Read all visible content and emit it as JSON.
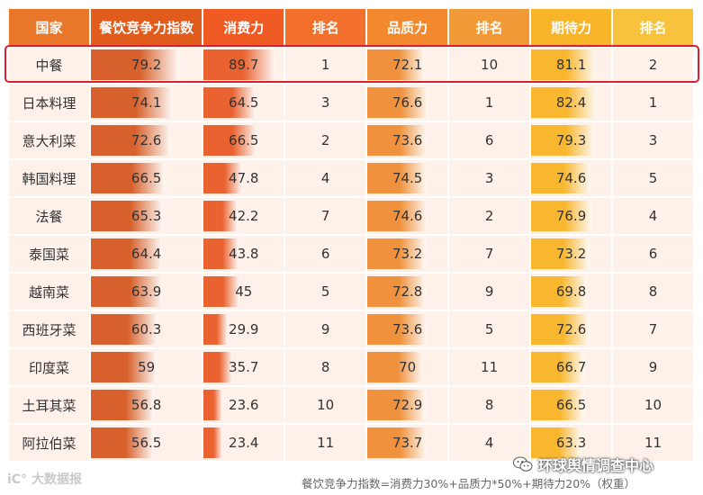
{
  "chart_data": {
    "type": "table",
    "columns": [
      "国家",
      "餐饮竞争力指数",
      "消费力",
      "排名",
      "品质力",
      "排名",
      "期待力",
      "排名"
    ],
    "rows": [
      {
        "country": "中餐",
        "index": 79.2,
        "consumption": 89.7,
        "consumption_rank": 1,
        "quality": 72.1,
        "quality_rank": 10,
        "expectation": 81.1,
        "expectation_rank": 2
      },
      {
        "country": "日本料理",
        "index": 74.1,
        "consumption": 64.5,
        "consumption_rank": 3,
        "quality": 76.6,
        "quality_rank": 1,
        "expectation": 82.4,
        "expectation_rank": 1
      },
      {
        "country": "意大利菜",
        "index": 72.6,
        "consumption": 66.5,
        "consumption_rank": 2,
        "quality": 73.6,
        "quality_rank": 6,
        "expectation": 79.3,
        "expectation_rank": 3
      },
      {
        "country": "韩国料理",
        "index": 66.5,
        "consumption": 47.8,
        "consumption_rank": 4,
        "quality": 74.5,
        "quality_rank": 3,
        "expectation": 74.6,
        "expectation_rank": 5
      },
      {
        "country": "法餐",
        "index": 65.3,
        "consumption": 42.2,
        "consumption_rank": 7,
        "quality": 74.6,
        "quality_rank": 2,
        "expectation": 76.9,
        "expectation_rank": 4
      },
      {
        "country": "泰国菜",
        "index": 64.4,
        "consumption": 43.8,
        "consumption_rank": 6,
        "quality": 73.2,
        "quality_rank": 7,
        "expectation": 73.2,
        "expectation_rank": 6
      },
      {
        "country": "越南菜",
        "index": 63.9,
        "consumption": 45,
        "consumption_rank": 5,
        "quality": 72.8,
        "quality_rank": 9,
        "expectation": 69.8,
        "expectation_rank": 8
      },
      {
        "country": "西班牙菜",
        "index": 60.3,
        "consumption": 29.9,
        "consumption_rank": 9,
        "quality": 73.6,
        "quality_rank": 5,
        "expectation": 72.6,
        "expectation_rank": 7
      },
      {
        "country": "印度菜",
        "index": 59,
        "consumption": 35.7,
        "consumption_rank": 8,
        "quality": 70,
        "quality_rank": 11,
        "expectation": 66.7,
        "expectation_rank": 9
      },
      {
        "country": "土耳其菜",
        "index": 56.8,
        "consumption": 23.6,
        "consumption_rank": 10,
        "quality": 72.9,
        "quality_rank": 8,
        "expectation": 66.5,
        "expectation_rank": 10
      },
      {
        "country": "阿拉伯菜",
        "index": 56.5,
        "consumption": 23.4,
        "consumption_rank": 11,
        "quality": 73.7,
        "quality_rank": 4,
        "expectation": 63.3,
        "expectation_rank": 11
      }
    ],
    "highlighted_row": "中餐"
  },
  "footer": {
    "formula": "餐饮竞争力指数=消费力30%+品质力*50%+期待力20%（权重）",
    "watermark_left": "iC° 大数据报",
    "watermark_right": "环球舆情调查中心"
  },
  "colors": {
    "header_country": "#e8772a",
    "header_index": "#e05b1c",
    "header_consumption": "#ef5b22",
    "header_rank1": "#f26f2c",
    "header_quality": "#f3892f",
    "header_rank2": "#f39a38",
    "header_expectation": "#f8b52a",
    "header_rank3": "#f9c23c",
    "bar_index": "#d4541b",
    "bar_consumption": "#e8561f",
    "bar_quality": "#ef8a2e",
    "bar_expectation": "#f8b21f",
    "highlight_border": "#d8202f"
  }
}
